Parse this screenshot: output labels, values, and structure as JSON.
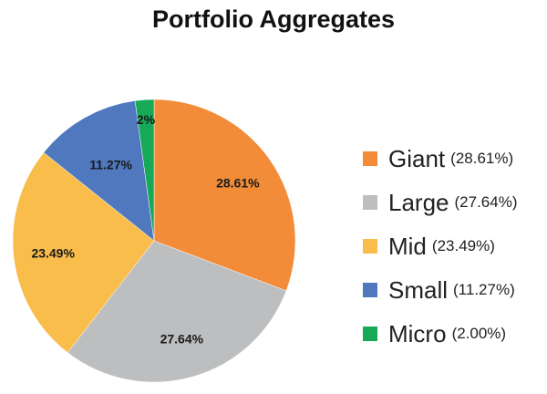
{
  "chart_data": {
    "type": "pie",
    "title": "Portfolio Aggregates",
    "slices": [
      {
        "name": "Giant",
        "value": 28.61,
        "label": "28.61%",
        "legend_pct": "(28.61%)",
        "color": "#F28C38"
      },
      {
        "name": "Large",
        "value": 27.64,
        "label": "27.64%",
        "legend_pct": "(27.64%)",
        "color": "#BDBEC0"
      },
      {
        "name": "Mid",
        "value": 23.49,
        "label": "23.49%",
        "legend_pct": "(23.49%)",
        "color": "#F8BD4A"
      },
      {
        "name": "Small",
        "value": 11.27,
        "label": "11.27%",
        "legend_pct": "(11.27%)",
        "color": "#4F78BF"
      },
      {
        "name": "Micro",
        "value": 2.0,
        "label": "2%",
        "legend_pct": "(2.00%)",
        "color": "#16A957"
      }
    ],
    "legend_position": "right"
  }
}
